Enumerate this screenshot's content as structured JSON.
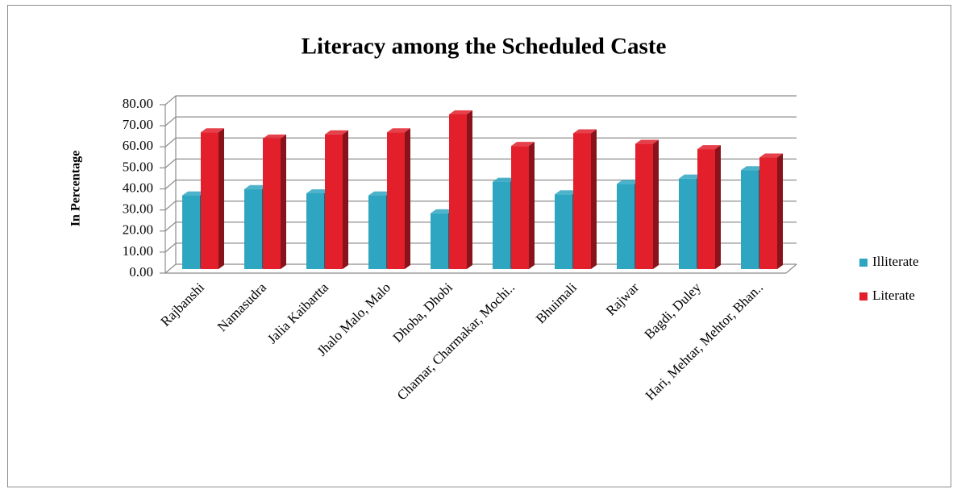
{
  "chart_data": {
    "type": "bar3d",
    "title": "Literacy among the Scheduled Caste",
    "y_label": "In Percentage",
    "categories": [
      "Rajbanshi",
      "Namasudra",
      "Jalia Kaibartta",
      "Jhalo Malo,  Malo",
      "Dhoba,  Dhobi",
      "Chamar, Charmakar, Mochi..",
      "Bhuimali",
      "Rajwar",
      "Bagdi,  Duley",
      "Hari, Mehtar, Mehtor, Bhan.."
    ],
    "series": [
      {
        "name": "Illiterate",
        "color": "#2ea6c1",
        "values": [
          35,
          38,
          36,
          35,
          26.5,
          41.5,
          35.5,
          40.5,
          43,
          47
        ]
      },
      {
        "name": "Literate",
        "color": "#e21f2b",
        "values": [
          65,
          62,
          64,
          65,
          73.5,
          58.5,
          64.5,
          59.5,
          57,
          53
        ]
      }
    ],
    "ylim": [
      0,
      80
    ],
    "yticks": [
      {
        "value": 0,
        "label": "0.00"
      },
      {
        "value": 10,
        "label": "10.00"
      },
      {
        "value": 20,
        "label": "20.00"
      },
      {
        "value": 30,
        "label": "30.00"
      },
      {
        "value": 40,
        "label": "40.00"
      },
      {
        "value": 50,
        "label": "50.00"
      },
      {
        "value": 60,
        "label": "60.00"
      },
      {
        "value": 70,
        "label": "70.00"
      },
      {
        "value": 80,
        "label": "80.00"
      }
    ],
    "grid": true,
    "legend": "right"
  }
}
